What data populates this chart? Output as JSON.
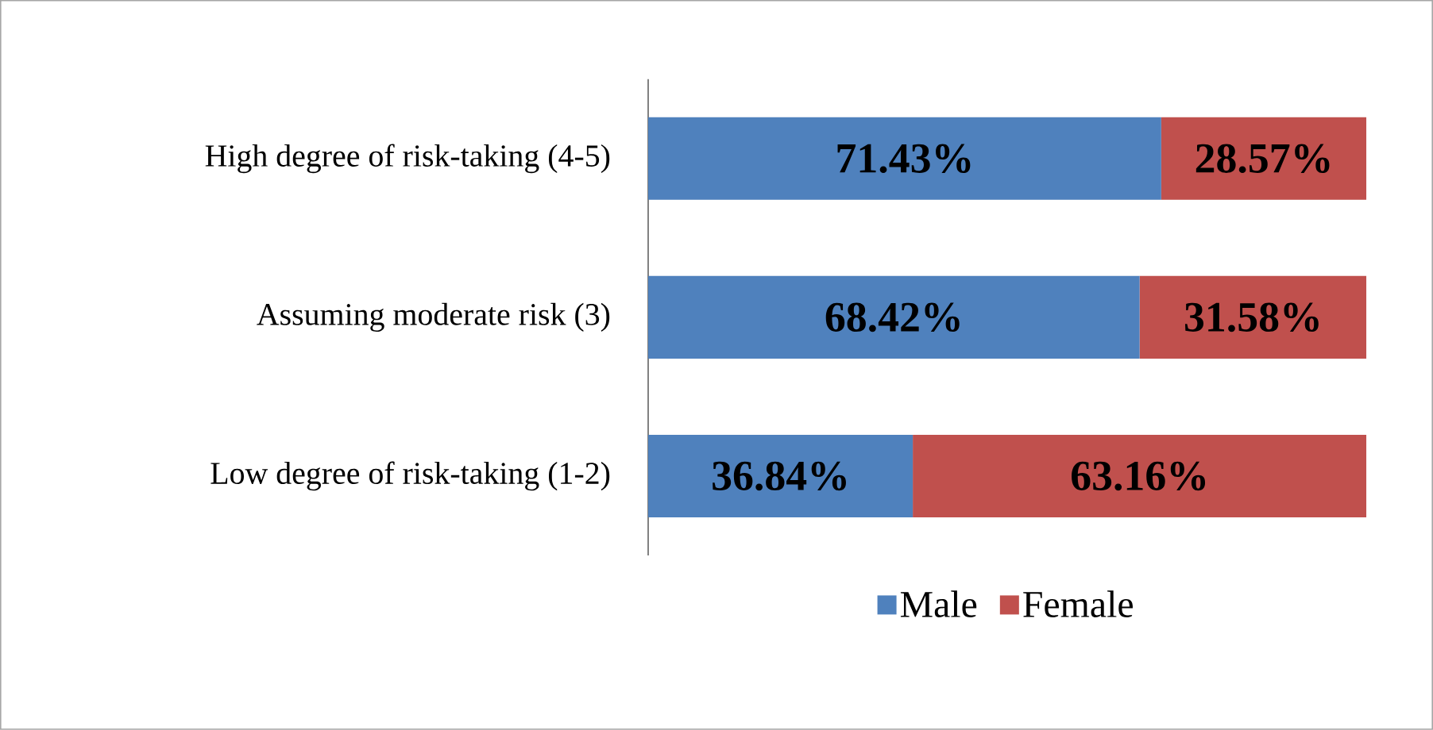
{
  "chart_data": {
    "type": "bar",
    "orientation": "horizontal",
    "stacked": true,
    "categories": [
      "High degree of risk-taking (4-5)",
      "Assuming moderate risk (3)",
      "Low degree of risk-taking (1-2)"
    ],
    "tick_labels": "y",
    "legend": "bottom",
    "series": [
      {
        "name": "Male",
        "color": "#4f81bd",
        "values": [
          71.43,
          68.42,
          36.84
        ],
        "value_labels": [
          "71.43%",
          "68.42%",
          "36.84%"
        ]
      },
      {
        "name": "Female",
        "color": "#c0504d",
        "values": [
          28.57,
          31.58,
          63.16
        ],
        "value_labels": [
          "28.57%",
          "31.58%",
          "63.16%"
        ]
      }
    ]
  }
}
